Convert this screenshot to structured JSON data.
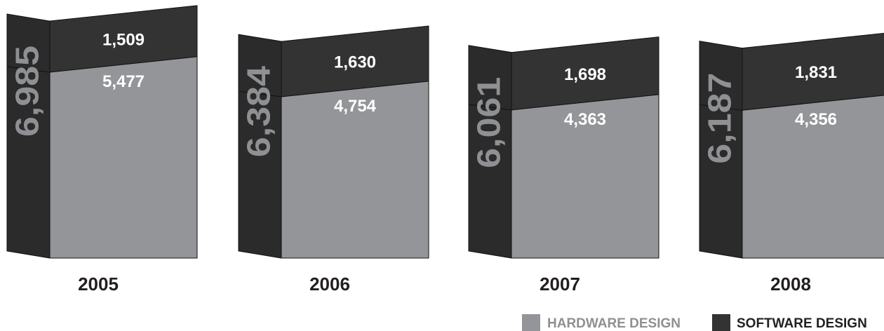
{
  "chart_data": {
    "type": "bar",
    "stacked": true,
    "style": "3d-box",
    "categories": [
      "2005",
      "2006",
      "2007",
      "2008"
    ],
    "totals": [
      6985,
      6384,
      6061,
      6187
    ],
    "total_labels": [
      "6,985",
      "6,384",
      "6,061",
      "6,187"
    ],
    "series": [
      {
        "name": "HARDWARE DESIGN",
        "values": [
          5477,
          4754,
          4363,
          4356
        ],
        "labels": [
          "5,477",
          "4,754",
          "4,363",
          "4,356"
        ],
        "color": "#939598"
      },
      {
        "name": "SOFTWARE DESIGN",
        "values": [
          1509,
          1630,
          1698,
          1831
        ],
        "labels": [
          "1,509",
          "1,630",
          "1,698",
          "1,831"
        ],
        "color": "#333333"
      }
    ],
    "legend": {
      "position": "bottom-right",
      "items": [
        "HARDWARE DESIGN",
        "SOFTWARE DESIGN"
      ]
    },
    "colors": {
      "hardware": "#939598",
      "software": "#333333",
      "side": "#2b2b2b",
      "top": "#2a2a2a",
      "total_label": "#8e9093",
      "category_label": "#231f20"
    },
    "grid": false
  }
}
